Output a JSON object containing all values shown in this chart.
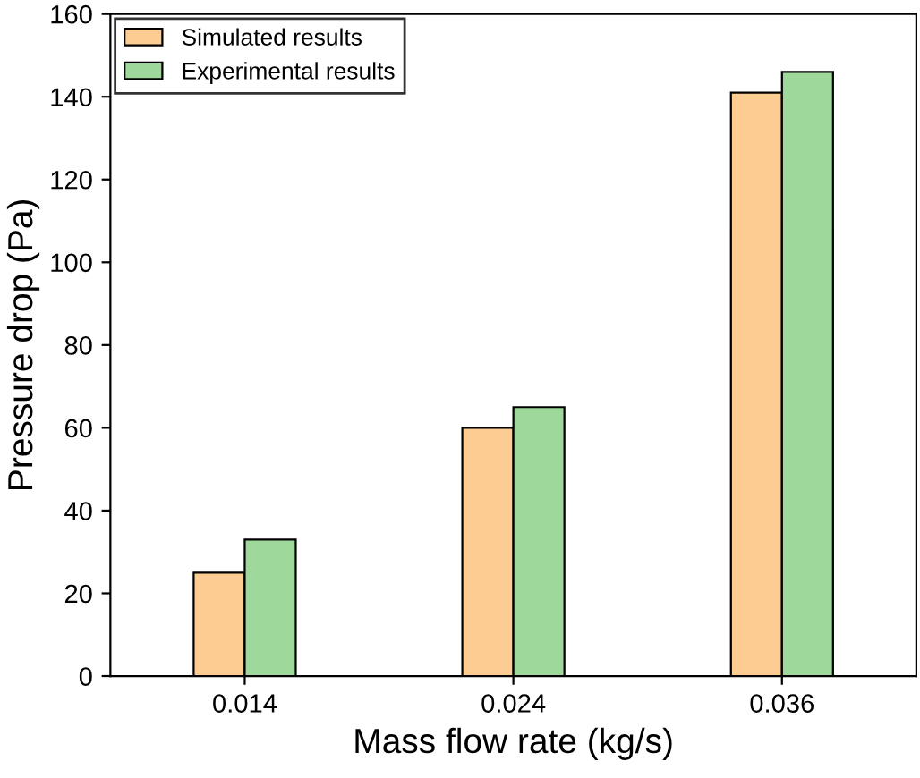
{
  "chart_data": {
    "type": "bar",
    "xlabel": "Mass flow rate (kg/s)",
    "ylabel": "Pressure drop (Pa)",
    "categories": [
      "0.014",
      "0.024",
      "0.036"
    ],
    "series": [
      {
        "name": "Simulated results",
        "color": "#fdcc92",
        "values": [
          25,
          60,
          141
        ]
      },
      {
        "name": "Experimental results",
        "color": "#9ed89b",
        "values": [
          33,
          65,
          146
        ]
      }
    ],
    "ylim": [
      0,
      160
    ],
    "yticks": [
      0,
      20,
      40,
      60,
      80,
      100,
      120,
      140,
      160
    ],
    "grid": false,
    "legend": "top left"
  }
}
